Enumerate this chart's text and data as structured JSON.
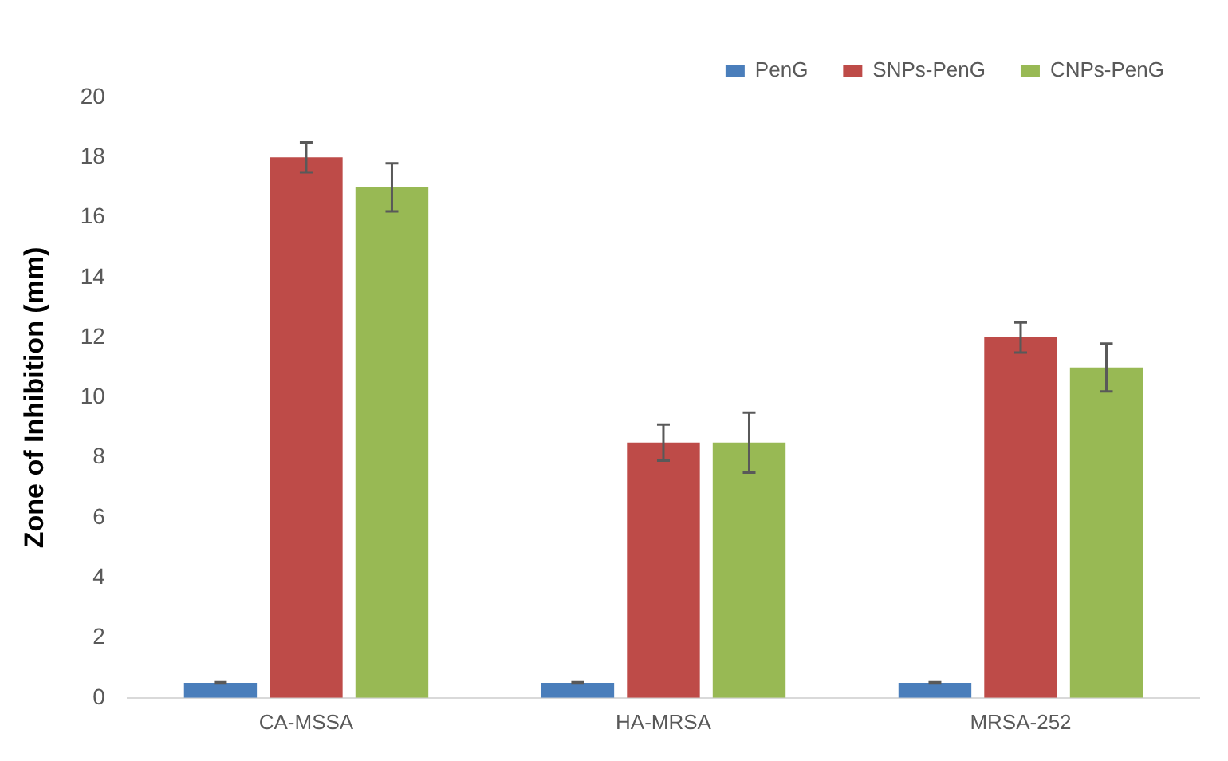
{
  "chart_data": {
    "type": "bar",
    "ylabel": "Zone of Inhibition (mm)",
    "categories": [
      "CA-MSSA",
      "HA-MRSA",
      "MRSA-252"
    ],
    "series": [
      {
        "name": "PenG",
        "color": "#4a7ebb",
        "values": [
          0.5,
          0.5,
          0.5
        ],
        "errors": [
          0.02,
          0.02,
          0.02
        ]
      },
      {
        "name": "SNPs-PenG",
        "color": "#be4b48",
        "values": [
          18,
          8.5,
          12
        ],
        "errors": [
          0.5,
          0.6,
          0.5
        ]
      },
      {
        "name": "CNPs-PenG",
        "color": "#98b954",
        "values": [
          17,
          8.5,
          11
        ],
        "errors": [
          0.8,
          1,
          0.8
        ]
      }
    ],
    "ylim": [
      0,
      20
    ],
    "yticks": [
      0,
      2,
      4,
      6,
      8,
      10,
      12,
      14,
      16,
      18,
      20
    ],
    "grid": false,
    "legend": "top right"
  }
}
